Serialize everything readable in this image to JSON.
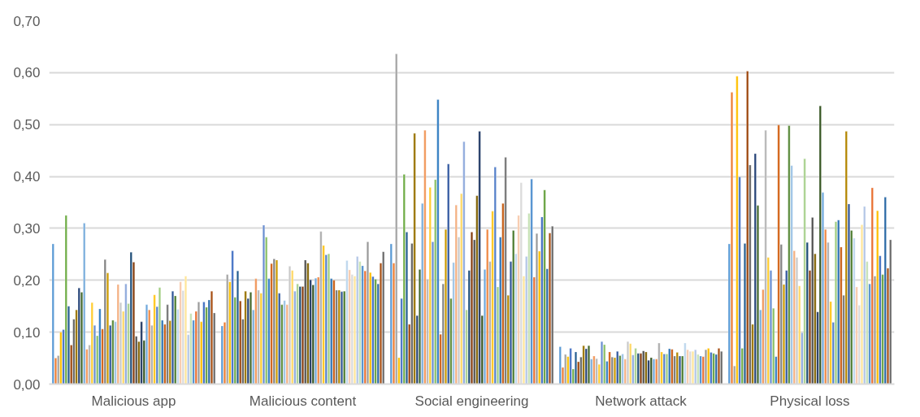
{
  "chart_data": {
    "type": "bar",
    "categories": [
      "Malicious app",
      "Malicious content",
      "Social engineering",
      "Network attack",
      "Physical loss"
    ],
    "ylim": [
      0,
      0.7
    ],
    "yticks": [
      {
        "value": 0,
        "label": "0,00"
      },
      {
        "value": 0.1,
        "label": "0,10"
      },
      {
        "value": 0.2,
        "label": "0,20"
      },
      {
        "value": 0.3,
        "label": "0,30"
      },
      {
        "value": 0.4,
        "label": "0,40"
      },
      {
        "value": 0.5,
        "label": "0,50"
      },
      {
        "value": 0.6,
        "label": "0,60"
      },
      {
        "value": 0.7,
        "label": "0,70"
      }
    ],
    "grid": "y",
    "series": [
      {
        "color": "#5b9bd5",
        "values": [
          0.27,
          0.112,
          0.27,
          0.072,
          0.27
        ]
      },
      {
        "color": "#ed7d31",
        "values": [
          0.05,
          0.119,
          0.233,
          0.032,
          0.562
        ]
      },
      {
        "color": "#a5a5a5",
        "values": [
          0.055,
          0.211,
          0.636,
          0.057,
          0.035
        ]
      },
      {
        "color": "#ffc000",
        "values": [
          0.1,
          0.197,
          0.051,
          0.053,
          0.593
        ]
      },
      {
        "color": "#4472c4",
        "values": [
          0.105,
          0.257,
          0.165,
          0.069,
          0.399
        ]
      },
      {
        "color": "#70ad47",
        "values": [
          0.325,
          0.167,
          0.404,
          0.029,
          0.069
        ]
      },
      {
        "color": "#255e91",
        "values": [
          0.15,
          0.218,
          0.293,
          0.062,
          0.271
        ]
      },
      {
        "color": "#9e480e",
        "values": [
          0.075,
          0.16,
          0.115,
          0.043,
          0.603
        ]
      },
      {
        "color": "#636363",
        "values": [
          0.125,
          0.125,
          0.271,
          0.052,
          0.422
        ]
      },
      {
        "color": "#997300",
        "values": [
          0.143,
          0.179,
          0.483,
          0.074,
          0.115
        ]
      },
      {
        "color": "#264478",
        "values": [
          0.185,
          0.165,
          0.132,
          0.068,
          0.444
        ]
      },
      {
        "color": "#43682b",
        "values": [
          0.177,
          0.177,
          0.221,
          0.074,
          0.344
        ]
      },
      {
        "color": "#7cafdd",
        "values": [
          0.31,
          0.143,
          0.348,
          0.048,
          0.143
        ]
      },
      {
        "color": "#f1975a",
        "values": [
          0.067,
          0.203,
          0.489,
          0.054,
          0.182
        ]
      },
      {
        "color": "#b7b7b7",
        "values": [
          0.075,
          0.181,
          0.202,
          0.049,
          0.489
        ]
      },
      {
        "color": "#ffcd33",
        "values": [
          0.157,
          0.175,
          0.379,
          0.038,
          0.244
        ]
      },
      {
        "color": "#698ed0",
        "values": [
          0.113,
          0.306,
          0.274,
          0.082,
          0.219
        ]
      },
      {
        "color": "#8cc168",
        "values": [
          0.093,
          0.283,
          0.394,
          0.076,
          0.146
        ]
      },
      {
        "color": "#327dc2",
        "values": [
          0.145,
          0.203,
          0.548,
          0.044,
          0.053
        ]
      },
      {
        "color": "#d26012",
        "values": [
          0.106,
          0.232,
          0.096,
          0.062,
          0.499
        ]
      },
      {
        "color": "#848484",
        "values": [
          0.24,
          0.241,
          0.193,
          0.052,
          0.269
        ]
      },
      {
        "color": "#cc9a00",
        "values": [
          0.214,
          0.239,
          0.298,
          0.051,
          0.192
        ]
      },
      {
        "color": "#335aa1",
        "values": [
          0.113,
          0.175,
          0.424,
          0.063,
          0.219
        ]
      },
      {
        "color": "#5a8a39",
        "values": [
          0.123,
          0.153,
          0.165,
          0.055,
          0.498
        ]
      },
      {
        "color": "#9dc3e6",
        "values": [
          0.12,
          0.161,
          0.234,
          0.058,
          0.421
        ]
      },
      {
        "color": "#f4b183",
        "values": [
          0.192,
          0.153,
          0.345,
          0.048,
          0.257
        ]
      },
      {
        "color": "#c9c9c9",
        "values": [
          0.157,
          0.227,
          0.283,
          0.082,
          0.244
        ]
      },
      {
        "color": "#ffd966",
        "values": [
          0.14,
          0.219,
          0.367,
          0.078,
          0.189
        ]
      },
      {
        "color": "#8faadc",
        "values": [
          0.193,
          0.179,
          0.467,
          0.056,
          0.099
        ]
      },
      {
        "color": "#a9d18e",
        "values": [
          0.155,
          0.193,
          0.143,
          0.069,
          0.434
        ]
      },
      {
        "color": "#1f4e79",
        "values": [
          0.254,
          0.188,
          0.219,
          0.059,
          0.273
        ]
      },
      {
        "color": "#843c0c",
        "values": [
          0.235,
          0.188,
          0.293,
          0.059,
          0.219
        ]
      },
      {
        "color": "#525252",
        "values": [
          0.092,
          0.239,
          0.278,
          0.064,
          0.321
        ]
      },
      {
        "color": "#7f6000",
        "values": [
          0.082,
          0.233,
          0.363,
          0.062,
          0.251
        ]
      },
      {
        "color": "#203864",
        "values": [
          0.12,
          0.201,
          0.487,
          0.046,
          0.139
        ]
      },
      {
        "color": "#375623",
        "values": [
          0.084,
          0.191,
          0.132,
          0.051,
          0.536
        ]
      },
      {
        "color": "#6fa8dc",
        "values": [
          0.153,
          0.204,
          0.221,
          0.048,
          0.369
        ]
      },
      {
        "color": "#ef8a46",
        "values": [
          0.143,
          0.206,
          0.298,
          0.048,
          0.298
        ]
      },
      {
        "color": "#aeaeae",
        "values": [
          0.113,
          0.294,
          0.236,
          0.079,
          0.273
        ]
      },
      {
        "color": "#ffc61a",
        "values": [
          0.172,
          0.267,
          0.333,
          0.062,
          0.159
        ]
      },
      {
        "color": "#5681ca",
        "values": [
          0.149,
          0.249,
          0.418,
          0.058,
          0.119
        ]
      },
      {
        "color": "#9fcd7f",
        "values": [
          0.186,
          0.251,
          0.187,
          0.058,
          0.313
        ]
      },
      {
        "color": "#2e75b6",
        "values": [
          0.123,
          0.203,
          0.283,
          0.068,
          0.316
        ]
      },
      {
        "color": "#c55a11",
        "values": [
          0.115,
          0.2,
          0.348,
          0.067,
          0.264
        ]
      },
      {
        "color": "#767676",
        "values": [
          0.153,
          0.181,
          0.437,
          0.054,
          0.171
        ]
      },
      {
        "color": "#b38600",
        "values": [
          0.122,
          0.181,
          0.171,
          0.061,
          0.487
        ]
      },
      {
        "color": "#2f5597",
        "values": [
          0.179,
          0.178,
          0.236,
          0.054,
          0.347
        ]
      },
      {
        "color": "#4e7d31",
        "values": [
          0.17,
          0.179,
          0.296,
          0.054,
          0.296
        ]
      },
      {
        "color": "#bdd7ee",
        "values": [
          0.144,
          0.238,
          0.251,
          0.079,
          0.281
        ]
      },
      {
        "color": "#f8cbad",
        "values": [
          0.197,
          0.22,
          0.325,
          0.066,
          0.187
        ]
      },
      {
        "color": "#dbdbdb",
        "values": [
          0.18,
          0.211,
          0.388,
          0.063,
          0.152
        ]
      },
      {
        "color": "#ffe699",
        "values": [
          0.208,
          0.208,
          0.208,
          0.063,
          0.307
        ]
      },
      {
        "color": "#b4c7e7",
        "values": [
          0.095,
          0.246,
          0.246,
          0.066,
          0.342
        ]
      },
      {
        "color": "#c5e0b4",
        "values": [
          0.136,
          0.236,
          0.329,
          0.057,
          0.236
        ]
      },
      {
        "color": "#4f8fcf",
        "values": [
          0.123,
          0.228,
          0.395,
          0.054,
          0.193
        ]
      },
      {
        "color": "#e97132",
        "values": [
          0.14,
          0.218,
          0.206,
          0.053,
          0.378
        ]
      },
      {
        "color": "#9a9a9a",
        "values": [
          0.158,
          0.274,
          0.29,
          0.066,
          0.208
        ]
      },
      {
        "color": "#ffbf00",
        "values": [
          0.12,
          0.215,
          0.256,
          0.069,
          0.334
        ]
      },
      {
        "color": "#3f6ec0",
        "values": [
          0.158,
          0.207,
          0.322,
          0.061,
          0.247
        ]
      },
      {
        "color": "#66a13e",
        "values": [
          0.148,
          0.202,
          0.374,
          0.059,
          0.211
        ]
      },
      {
        "color": "#2b6aa6",
        "values": [
          0.162,
          0.193,
          0.222,
          0.057,
          0.36
        ]
      },
      {
        "color": "#a64e12",
        "values": [
          0.179,
          0.233,
          0.291,
          0.069,
          0.223
        ]
      },
      {
        "color": "#6b6b6b",
        "values": [
          0.137,
          0.255,
          0.304,
          0.063,
          0.278
        ]
      }
    ]
  }
}
